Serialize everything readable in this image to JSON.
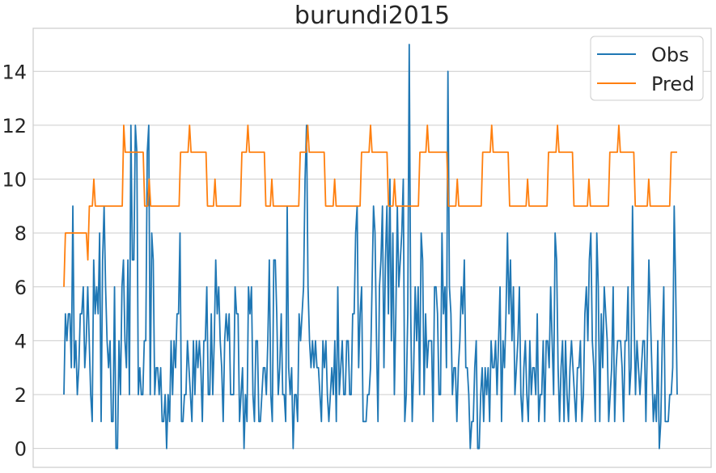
{
  "chart_data": {
    "type": "line",
    "title": "burundi2015",
    "xlabel": "",
    "ylabel": "",
    "ylim": [
      -0.7,
      15.6
    ],
    "yticks": [
      0,
      2,
      4,
      6,
      8,
      10,
      12,
      14
    ],
    "grid": "horizontal",
    "legend": "top-right",
    "series": [
      {
        "name": "Obs",
        "color": "#1f77b4",
        "values": [
          2,
          5,
          4,
          5,
          5,
          3,
          9,
          3,
          4,
          2,
          3,
          5,
          5,
          6,
          3,
          4,
          6,
          4,
          2,
          1,
          7,
          5,
          6,
          5,
          8,
          1,
          7,
          9,
          6,
          4,
          3,
          4,
          1,
          1,
          6,
          0,
          0,
          4,
          2,
          6,
          7,
          4,
          3,
          7,
          2,
          12,
          7,
          7,
          12,
          11,
          2,
          3,
          2,
          2,
          4,
          4,
          11,
          12,
          2,
          8,
          7,
          2,
          3,
          3,
          2,
          3,
          1,
          1,
          2,
          0,
          2,
          1,
          4,
          2,
          4,
          3,
          5,
          5,
          8,
          1,
          1,
          2,
          2,
          4,
          3,
          2,
          1,
          4,
          2,
          4,
          3,
          4,
          3,
          1,
          4,
          4,
          6,
          2,
          2,
          5,
          2,
          4,
          7,
          5,
          6,
          4,
          3,
          1,
          4,
          5,
          4,
          5,
          2,
          2,
          2,
          6,
          5,
          5,
          1,
          2,
          3,
          0,
          2,
          1,
          6,
          5,
          6,
          2,
          1,
          4,
          4,
          1,
          1,
          2,
          3,
          3,
          2,
          4,
          7,
          2,
          1,
          7,
          7,
          5,
          2,
          3,
          5,
          2,
          2,
          1,
          9,
          3,
          2,
          3,
          0,
          2,
          2,
          1,
          5,
          4,
          5,
          6,
          10,
          12,
          6,
          4,
          3,
          4,
          3,
          4,
          3,
          3,
          2,
          1,
          4,
          3,
          4,
          2,
          1,
          2,
          3,
          2,
          4,
          1,
          6,
          2,
          3,
          4,
          2,
          2,
          4,
          4,
          2,
          2,
          5,
          5,
          8,
          9,
          3,
          5,
          6,
          1,
          1,
          1,
          2,
          2,
          3,
          6,
          9,
          8,
          4,
          1,
          6,
          7,
          9,
          3,
          7,
          9,
          5,
          10,
          4,
          8,
          2,
          5,
          9,
          6,
          7,
          8,
          10,
          1,
          2,
          5,
          15,
          5,
          1,
          3,
          6,
          4,
          6,
          2,
          8,
          7,
          2,
          5,
          3,
          4,
          4,
          4,
          1,
          6,
          6,
          5,
          2,
          2,
          8,
          5,
          6,
          3,
          14,
          6,
          5,
          2,
          3,
          3,
          1,
          3,
          4,
          6,
          5,
          7,
          3,
          3,
          2,
          0,
          1,
          1,
          3,
          4,
          0,
          0,
          2,
          3,
          1,
          3,
          2,
          3,
          1,
          4,
          3,
          3,
          4,
          2,
          4,
          6,
          1,
          4,
          3,
          5,
          8,
          5,
          7,
          4,
          6,
          2,
          3,
          4,
          6,
          2,
          1,
          3,
          4,
          2,
          1,
          4,
          2,
          3,
          3,
          2,
          5,
          1,
          2,
          2,
          4,
          1,
          4,
          4,
          3,
          6,
          4,
          2,
          8,
          7,
          3,
          1,
          3,
          4,
          1,
          4,
          2,
          1,
          3,
          4,
          3,
          2,
          1,
          3,
          3,
          4,
          1,
          2,
          5,
          6,
          4,
          7,
          8,
          4,
          3,
          1,
          8,
          6,
          1,
          5,
          3,
          6,
          5,
          4,
          1,
          2,
          3,
          6,
          1,
          3,
          4,
          4,
          4,
          3,
          1,
          4,
          4,
          6,
          2,
          3,
          9,
          5,
          2,
          4,
          3,
          2,
          3,
          4,
          4,
          1,
          4,
          7,
          5,
          3,
          1,
          2,
          1,
          4,
          0,
          1,
          4,
          6,
          1,
          1,
          1,
          2,
          2,
          3,
          9,
          6,
          2
        ]
      },
      {
        "name": "Pred",
        "color": "#ff7f0e",
        "values": [
          6,
          8,
          8,
          8,
          8,
          8,
          8,
          8,
          8,
          8,
          8,
          8,
          8,
          8,
          8,
          8,
          7,
          9,
          9,
          9,
          10,
          9,
          9,
          9,
          9,
          9,
          9,
          9,
          9,
          9,
          9,
          9,
          9,
          9,
          9,
          9,
          9,
          9,
          9,
          9,
          12,
          11,
          11,
          11,
          11,
          11,
          11,
          11,
          11,
          11,
          11,
          11,
          11,
          11,
          9,
          9,
          9,
          10,
          9,
          9,
          9,
          9,
          9,
          9,
          9,
          9,
          9,
          9,
          9,
          9,
          9,
          9,
          9,
          9,
          9,
          9,
          9,
          9,
          11,
          11,
          11,
          11,
          11,
          11,
          12,
          11,
          11,
          11,
          11,
          11,
          11,
          11,
          11,
          11,
          11,
          11,
          9,
          9,
          9,
          9,
          9,
          10,
          9,
          9,
          9,
          9,
          9,
          9,
          9,
          9,
          9,
          9,
          9,
          9,
          9,
          9,
          9,
          9,
          9,
          11,
          11,
          11,
          11,
          12,
          11,
          11,
          11,
          11,
          11,
          11,
          11,
          11,
          11,
          11,
          11,
          9,
          9,
          9,
          9,
          10,
          9,
          9,
          9,
          9,
          9,
          9,
          9,
          9,
          9,
          9,
          9,
          9,
          9,
          9,
          9,
          9,
          9,
          9,
          11,
          11,
          11,
          11,
          11,
          12,
          11,
          11,
          11,
          11,
          11,
          11,
          11,
          11,
          11,
          11,
          11,
          9,
          9,
          9,
          9,
          9,
          9,
          10,
          9,
          9,
          9,
          9,
          9,
          9,
          9,
          9,
          9,
          9,
          9,
          9,
          9,
          9,
          9,
          9,
          9,
          11,
          11,
          11,
          11,
          11,
          11,
          12,
          11,
          11,
          11,
          11,
          11,
          11,
          11,
          11,
          11,
          11,
          11,
          9,
          9,
          9,
          9,
          10,
          9,
          9,
          9,
          9,
          9,
          9,
          9,
          9,
          9,
          9,
          9,
          9,
          9,
          9,
          9,
          9,
          11,
          11,
          11,
          11,
          11,
          12,
          11,
          11,
          11,
          11,
          11,
          11,
          11,
          11,
          11,
          11,
          11,
          11,
          11,
          9,
          9,
          9,
          9,
          9,
          9,
          10,
          9,
          9,
          9,
          9,
          9,
          9,
          9,
          9,
          9,
          9,
          9,
          9,
          9,
          9,
          9,
          9,
          11,
          11,
          11,
          11,
          11,
          11,
          12,
          11,
          11,
          11,
          11,
          11,
          11,
          11,
          11,
          11,
          11,
          11,
          9,
          9,
          9,
          9,
          9,
          9,
          9,
          9,
          9,
          9,
          9,
          9,
          10,
          9,
          9,
          9,
          9,
          9,
          9,
          9,
          9,
          9,
          9,
          9,
          9,
          9,
          11,
          11,
          11,
          11,
          11,
          11,
          12,
          11,
          11,
          11,
          11,
          11,
          11,
          11,
          11,
          11,
          11,
          9,
          9,
          9,
          9,
          9,
          9,
          9,
          9,
          9,
          9,
          10,
          9,
          9,
          9,
          9,
          9,
          9,
          9,
          9,
          9,
          9,
          9,
          9,
          9,
          11,
          11,
          11,
          11,
          11,
          11,
          12,
          11,
          11,
          11,
          11,
          11,
          11,
          11,
          11,
          11,
          11,
          9,
          9,
          9,
          9,
          9,
          9,
          9,
          9,
          9,
          10,
          9,
          9,
          9,
          9,
          9,
          9,
          9,
          9,
          9,
          9,
          9,
          9,
          9,
          9,
          11,
          11,
          11,
          11,
          11
        ]
      }
    ]
  }
}
